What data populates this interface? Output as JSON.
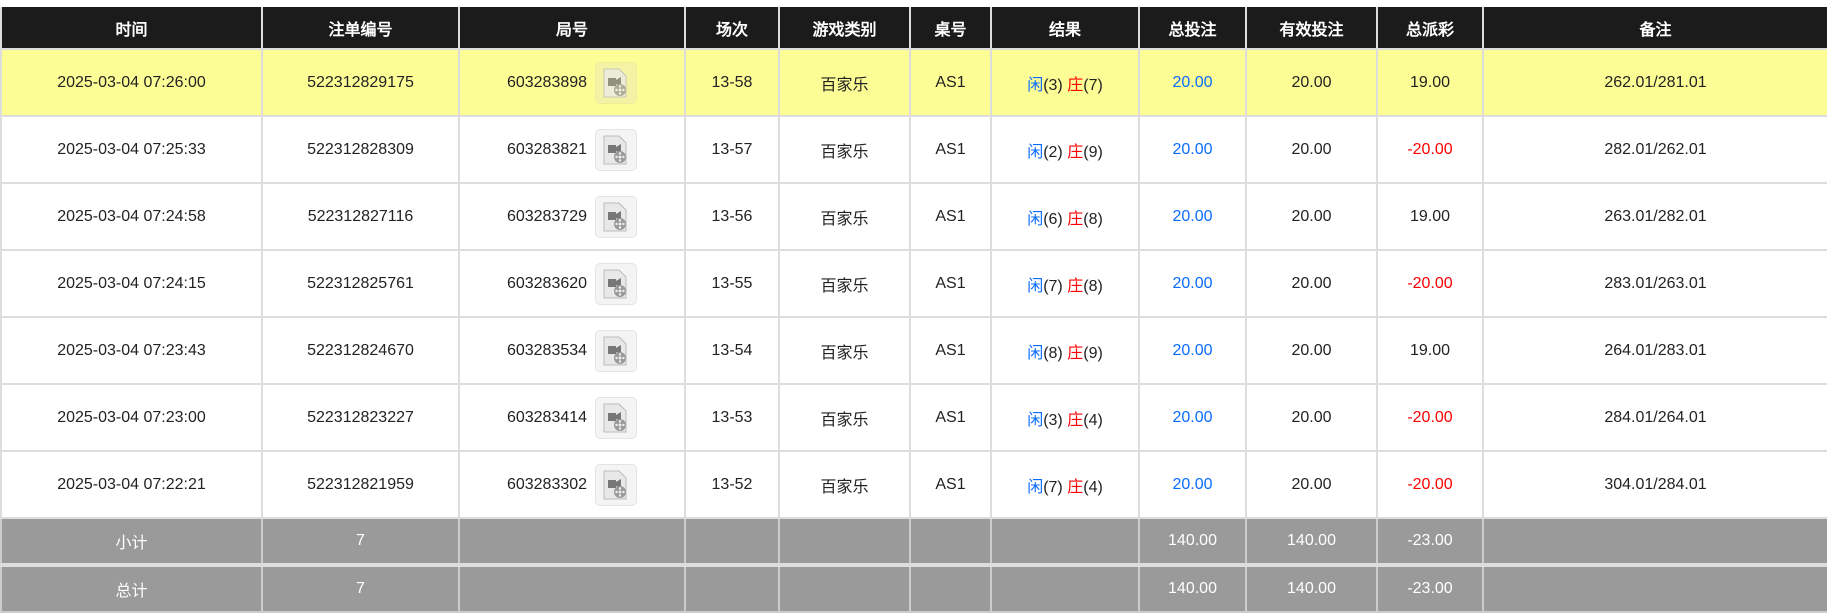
{
  "headers": [
    "时间",
    "注单编号",
    "局号",
    "场次",
    "游戏类别",
    "桌号",
    "结果",
    "总投注",
    "有效投注",
    "总派彩",
    "备注"
  ],
  "rows": [
    {
      "time": "2025-03-04 07:26:00",
      "bet_id": "522312829175",
      "round": "603283898",
      "session": "13-58",
      "game": "百家乐",
      "table": "AS1",
      "player_label": "闲",
      "player": "(3)",
      "banker_label": "庄",
      "banker": "(7)",
      "total_bet": "20.00",
      "valid_bet": "20.00",
      "payout": "19.00",
      "payout_negative": false,
      "note": "262.01/281.01",
      "highlighted": true
    },
    {
      "time": "2025-03-04 07:25:33",
      "bet_id": "522312828309",
      "round": "603283821",
      "session": "13-57",
      "game": "百家乐",
      "table": "AS1",
      "player_label": "闲",
      "player": "(2)",
      "banker_label": "庄",
      "banker": "(9)",
      "total_bet": "20.00",
      "valid_bet": "20.00",
      "payout": "-20.00",
      "payout_negative": true,
      "note": "282.01/262.01",
      "highlighted": false
    },
    {
      "time": "2025-03-04 07:24:58",
      "bet_id": "522312827116",
      "round": "603283729",
      "session": "13-56",
      "game": "百家乐",
      "table": "AS1",
      "player_label": "闲",
      "player": "(6)",
      "banker_label": "庄",
      "banker": "(8)",
      "total_bet": "20.00",
      "valid_bet": "20.00",
      "payout": "19.00",
      "payout_negative": false,
      "note": "263.01/282.01",
      "highlighted": false
    },
    {
      "time": "2025-03-04 07:24:15",
      "bet_id": "522312825761",
      "round": "603283620",
      "session": "13-55",
      "game": "百家乐",
      "table": "AS1",
      "player_label": "闲",
      "player": "(7)",
      "banker_label": "庄",
      "banker": "(8)",
      "total_bet": "20.00",
      "valid_bet": "20.00",
      "payout": "-20.00",
      "payout_negative": true,
      "note": "283.01/263.01",
      "highlighted": false
    },
    {
      "time": "2025-03-04 07:23:43",
      "bet_id": "522312824670",
      "round": "603283534",
      "session": "13-54",
      "game": "百家乐",
      "table": "AS1",
      "player_label": "闲",
      "player": "(8)",
      "banker_label": "庄",
      "banker": "(9)",
      "total_bet": "20.00",
      "valid_bet": "20.00",
      "payout": "19.00",
      "payout_negative": false,
      "note": "264.01/283.01",
      "highlighted": false
    },
    {
      "time": "2025-03-04 07:23:00",
      "bet_id": "522312823227",
      "round": "603283414",
      "session": "13-53",
      "game": "百家乐",
      "table": "AS1",
      "player_label": "闲",
      "player": "(3)",
      "banker_label": "庄",
      "banker": "(4)",
      "total_bet": "20.00",
      "valid_bet": "20.00",
      "payout": "-20.00",
      "payout_negative": true,
      "note": "284.01/264.01",
      "highlighted": false
    },
    {
      "time": "2025-03-04 07:22:21",
      "bet_id": "522312821959",
      "round": "603283302",
      "session": "13-52",
      "game": "百家乐",
      "table": "AS1",
      "player_label": "闲",
      "player": "(7)",
      "banker_label": "庄",
      "banker": "(4)",
      "total_bet": "20.00",
      "valid_bet": "20.00",
      "payout": "-20.00",
      "payout_negative": true,
      "note": "304.01/284.01",
      "highlighted": false
    }
  ],
  "summary": [
    {
      "label": "小计",
      "count": "7",
      "total_bet": "140.00",
      "valid_bet": "140.00",
      "payout": "-23.00"
    },
    {
      "label": "总计",
      "count": "7",
      "total_bet": "140.00",
      "valid_bet": "140.00",
      "payout": "-23.00"
    }
  ],
  "colors": {
    "header_bg": "#1b1b1b",
    "highlight_row": "#fdfd96",
    "summary_bg": "#9a9a9a",
    "player": "#0a6cff",
    "banker": "#ff0000",
    "negative": "#ff0000",
    "total_bet": "#0a6cff"
  },
  "icons": {
    "replay": "video-file-icon"
  }
}
